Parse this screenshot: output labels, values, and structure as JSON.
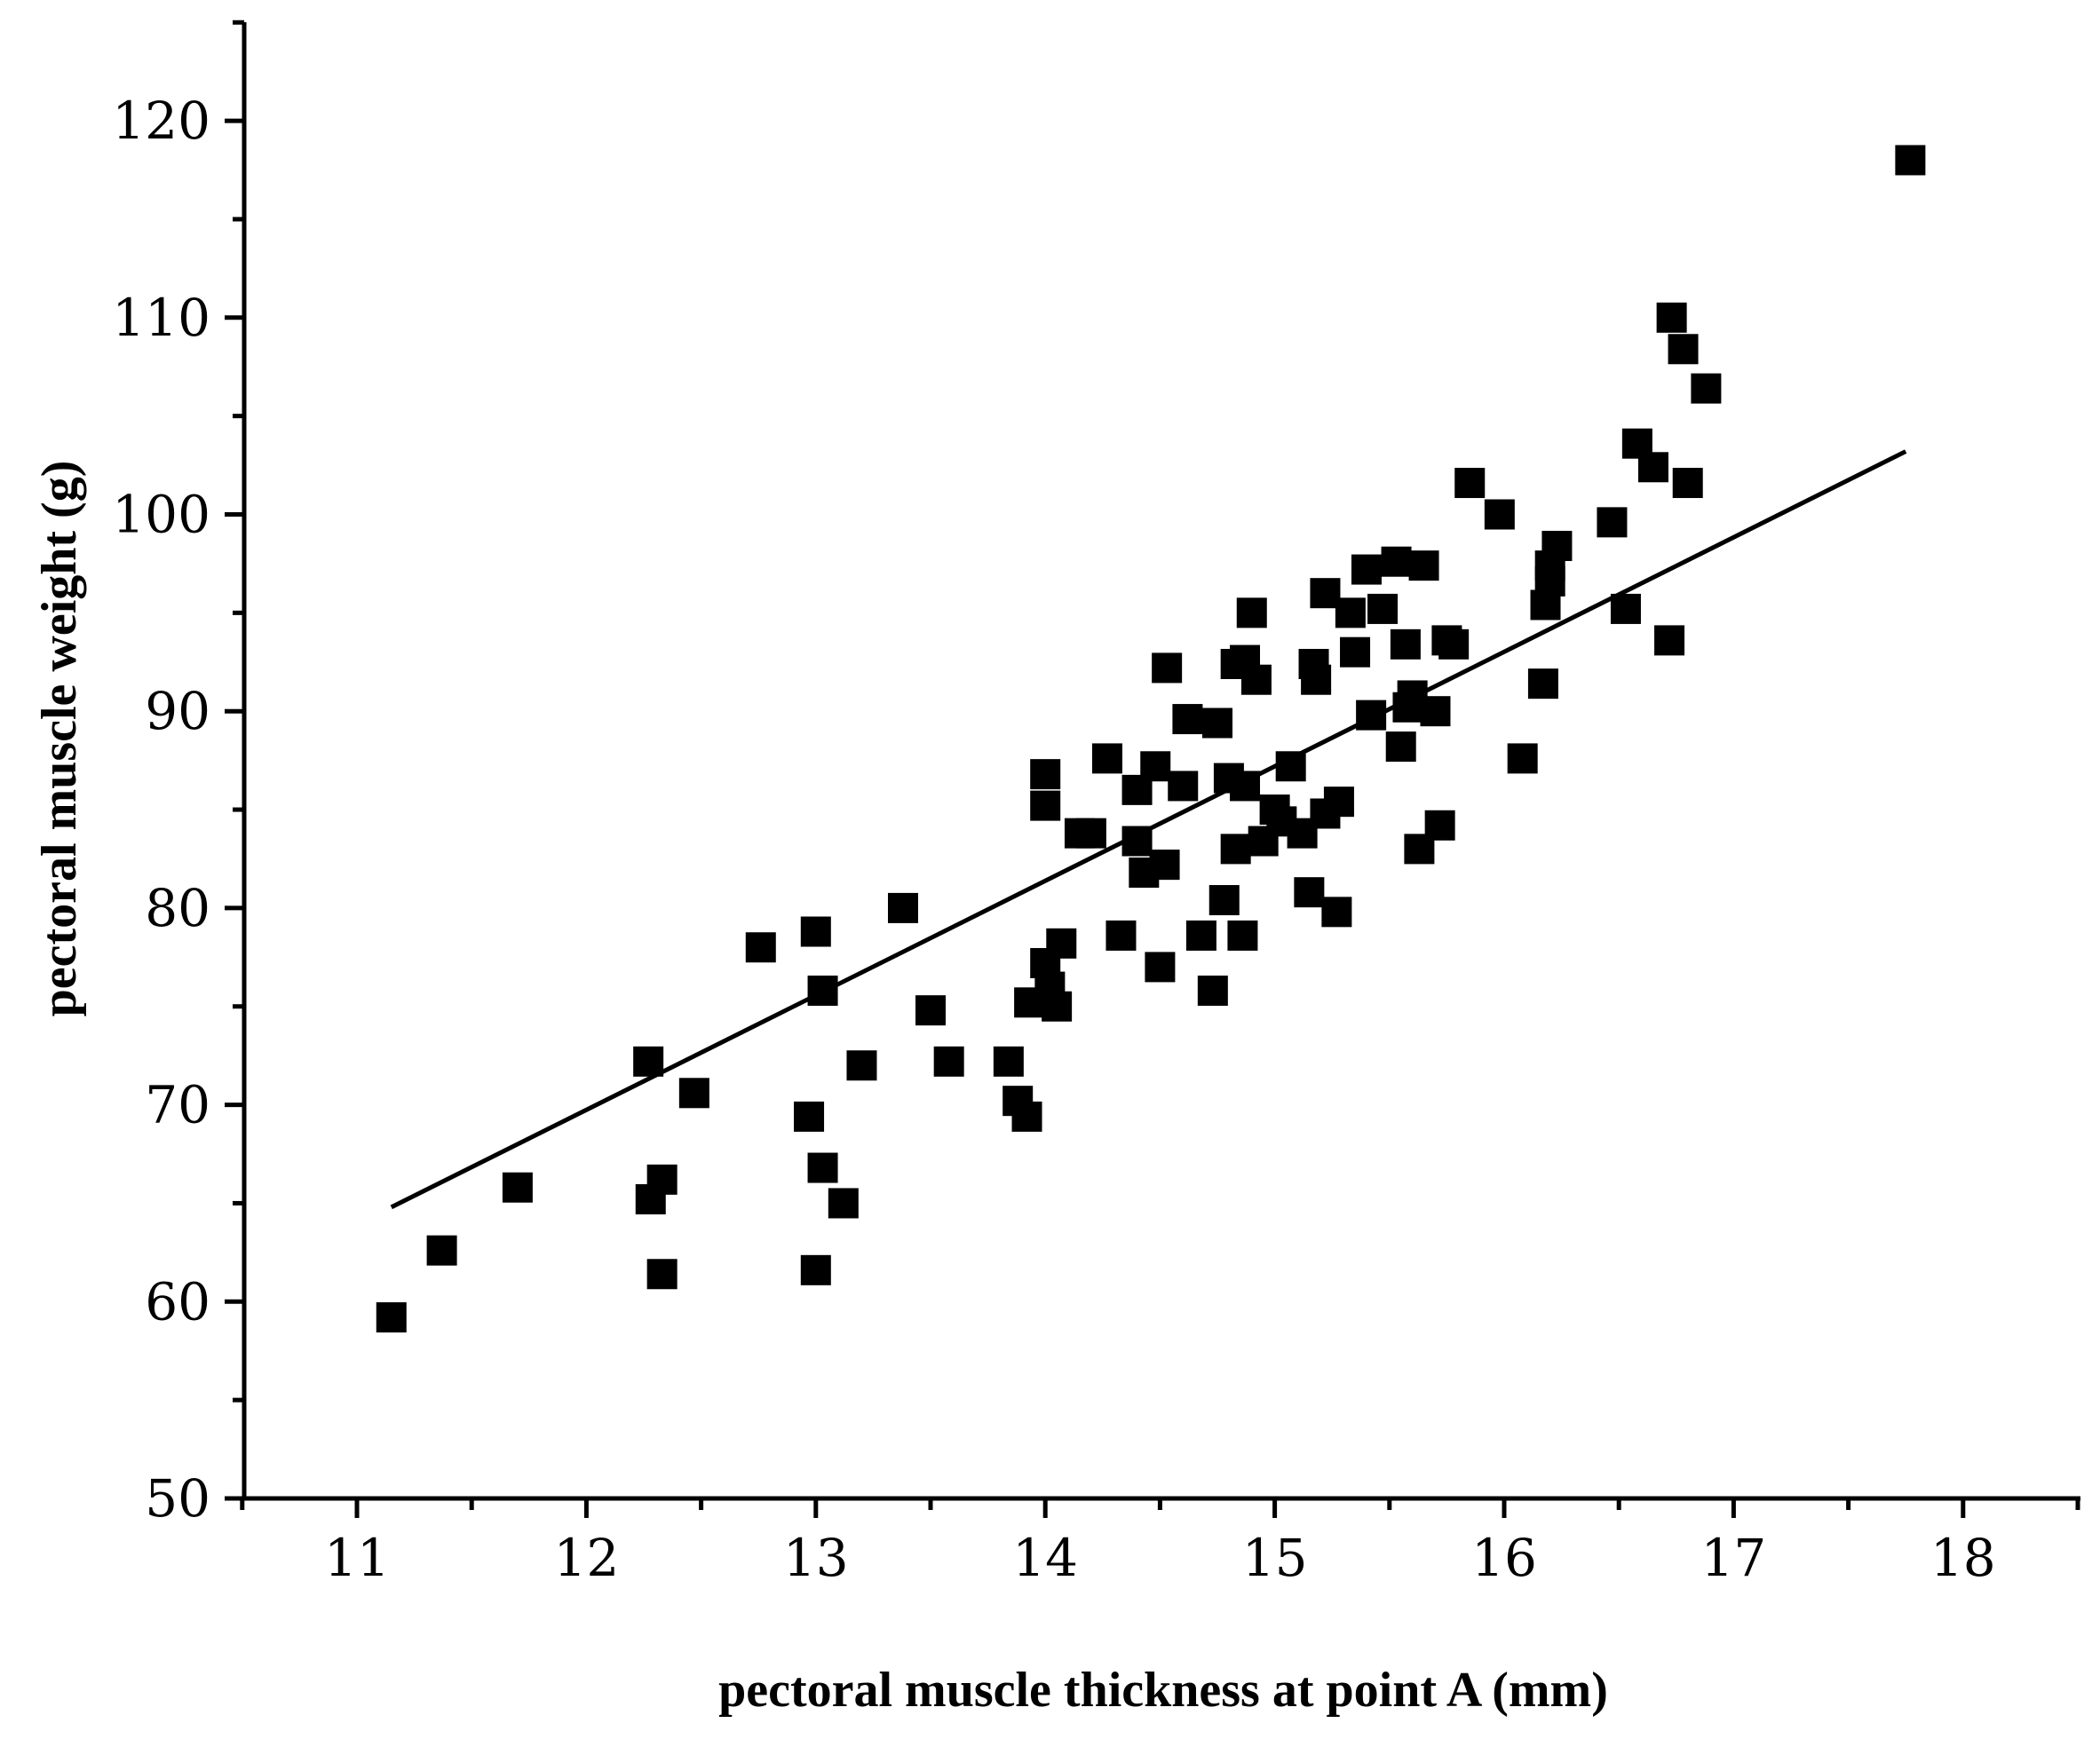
{
  "chart_data": {
    "type": "scatter",
    "title": "",
    "xlabel": "pectoral muscle thickness at point A (mm)",
    "ylabel": "pectoral muscle weight (g)",
    "xlim": [
      10.5,
      18.5
    ],
    "ylim": [
      50,
      125
    ],
    "x_ticks": [
      11,
      12,
      13,
      14,
      15,
      16,
      17,
      18
    ],
    "y_ticks": [
      50,
      60,
      70,
      80,
      90,
      100,
      110,
      120
    ],
    "x_tick_labels": [
      "11",
      "12",
      "13",
      "14",
      "15",
      "16",
      "17",
      "18"
    ],
    "y_tick_labels": [
      "50",
      "60",
      "70",
      "80",
      "90",
      "100",
      "110",
      "120"
    ],
    "grid": false,
    "marker": "square",
    "color": "#000000",
    "points": [
      [
        11.15,
        59.2
      ],
      [
        11.37,
        62.6
      ],
      [
        11.7,
        65.8
      ],
      [
        12.27,
        72.2
      ],
      [
        12.28,
        65.2
      ],
      [
        12.33,
        66.2
      ],
      [
        12.33,
        61.4
      ],
      [
        12.47,
        70.6
      ],
      [
        12.76,
        78.0
      ],
      [
        12.97,
        69.4
      ],
      [
        13.0,
        78.8
      ],
      [
        13.0,
        61.6
      ],
      [
        13.03,
        66.8
      ],
      [
        13.03,
        75.8
      ],
      [
        13.12,
        65.0
      ],
      [
        13.2,
        72.0
      ],
      [
        13.38,
        80.0
      ],
      [
        13.5,
        74.8
      ],
      [
        13.58,
        72.2
      ],
      [
        13.84,
        72.2
      ],
      [
        13.88,
        70.2
      ],
      [
        13.92,
        69.4
      ],
      [
        13.93,
        75.2
      ],
      [
        14.0,
        86.8
      ],
      [
        14.0,
        85.2
      ],
      [
        14.0,
        77.2
      ],
      [
        14.02,
        76.0
      ],
      [
        14.05,
        75.0
      ],
      [
        14.07,
        78.2
      ],
      [
        14.15,
        83.8
      ],
      [
        14.2,
        83.8
      ],
      [
        14.27,
        87.6
      ],
      [
        14.33,
        78.6
      ],
      [
        14.4,
        83.4
      ],
      [
        14.4,
        86.0
      ],
      [
        14.43,
        81.8
      ],
      [
        14.48,
        87.2
      ],
      [
        14.5,
        77.0
      ],
      [
        14.52,
        82.2
      ],
      [
        14.53,
        92.2
      ],
      [
        14.6,
        86.2
      ],
      [
        14.62,
        89.6
      ],
      [
        14.68,
        78.6
      ],
      [
        14.73,
        75.8
      ],
      [
        14.75,
        89.4
      ],
      [
        14.78,
        80.4
      ],
      [
        14.8,
        86.6
      ],
      [
        14.83,
        83.0
      ],
      [
        14.83,
        92.4
      ],
      [
        14.86,
        78.6
      ],
      [
        14.87,
        86.2
      ],
      [
        14.87,
        92.6
      ],
      [
        14.9,
        95.0
      ],
      [
        14.92,
        91.6
      ],
      [
        14.95,
        83.4
      ],
      [
        15.0,
        85.0
      ],
      [
        15.03,
        84.4
      ],
      [
        15.07,
        87.2
      ],
      [
        15.12,
        83.8
      ],
      [
        15.15,
        80.8
      ],
      [
        15.17,
        92.4
      ],
      [
        15.18,
        91.6
      ],
      [
        15.22,
        84.8
      ],
      [
        15.22,
        96.0
      ],
      [
        15.27,
        79.8
      ],
      [
        15.28,
        85.4
      ],
      [
        15.33,
        95.0
      ],
      [
        15.35,
        93.0
      ],
      [
        15.4,
        97.2
      ],
      [
        15.42,
        89.8
      ],
      [
        15.47,
        95.2
      ],
      [
        15.53,
        97.6
      ],
      [
        15.55,
        88.2
      ],
      [
        15.57,
        93.4
      ],
      [
        15.58,
        90.2
      ],
      [
        15.6,
        90.8
      ],
      [
        15.63,
        83.0
      ],
      [
        15.65,
        97.4
      ],
      [
        15.7,
        90.0
      ],
      [
        15.72,
        84.2
      ],
      [
        15.75,
        93.6
      ],
      [
        15.78,
        93.4
      ],
      [
        15.85,
        101.6
      ],
      [
        15.98,
        100.0
      ],
      [
        16.08,
        87.6
      ],
      [
        16.17,
        91.4
      ],
      [
        16.18,
        95.4
      ],
      [
        16.2,
        96.6
      ],
      [
        16.2,
        97.4
      ],
      [
        16.23,
        98.4
      ],
      [
        16.47,
        99.6
      ],
      [
        16.53,
        95.2
      ],
      [
        16.58,
        103.6
      ],
      [
        16.65,
        102.4
      ],
      [
        16.72,
        93.6
      ],
      [
        16.73,
        110.0
      ],
      [
        16.78,
        108.4
      ],
      [
        16.8,
        101.6
      ],
      [
        16.88,
        106.4
      ],
      [
        17.77,
        118.0
      ]
    ],
    "fit_line": {
      "x": [
        11.15,
        17.75
      ],
      "y": [
        64.8,
        103.2
      ]
    }
  }
}
